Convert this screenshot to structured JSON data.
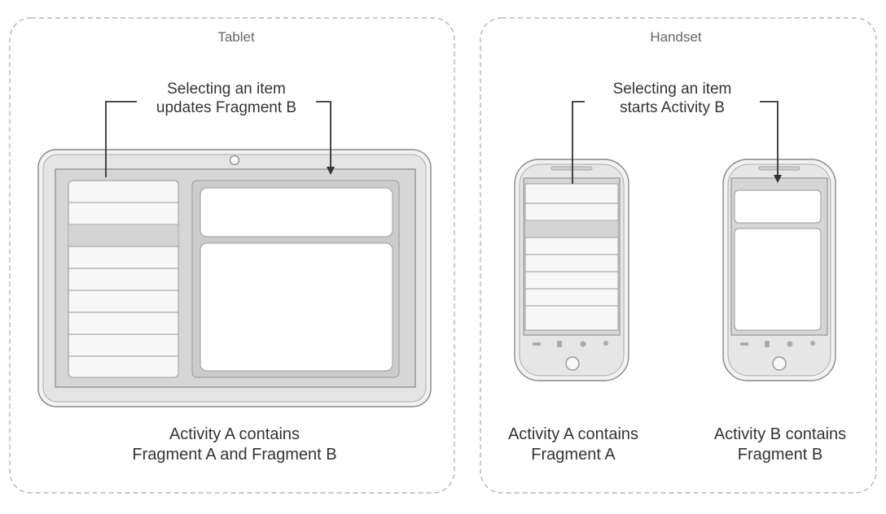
{
  "tablet": {
    "title": "Tablet",
    "note_line1": "Selecting an item",
    "note_line2": "updates Fragment B",
    "caption_line1": "Activity A contains",
    "caption_line2": "Fragment A and Fragment B"
  },
  "handset": {
    "title": "Handset",
    "note_line1": "Selecting an item",
    "note_line2": "starts Activity B",
    "phone_a_caption_line1": "Activity A contains",
    "phone_a_caption_line2": "Fragment A",
    "phone_b_caption_line1": "Activity B contains",
    "phone_b_caption_line2": "Fragment B"
  },
  "colors": {
    "panel_border": "#aaaaaa",
    "device_frame": "#e6e6e6",
    "device_stroke": "#888888",
    "screen_bg": "#d2d2d2",
    "list_item": "#f7f7f7",
    "selected_item": "#d4d4d4",
    "arrow": "#333333"
  }
}
